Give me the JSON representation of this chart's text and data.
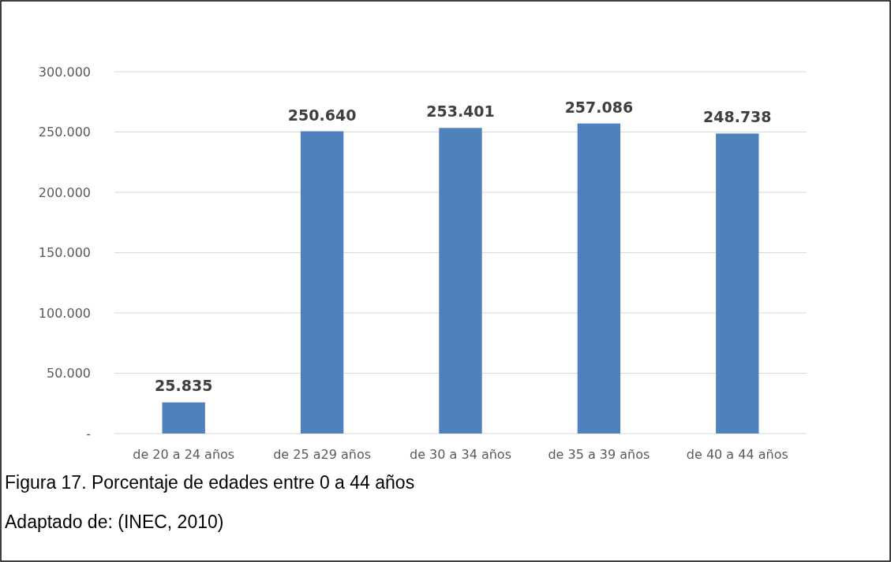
{
  "chart_data": {
    "type": "bar",
    "categories": [
      "de 20 a 24 años",
      "de 25 a29 años",
      "de 30 a 34 años",
      "de 35 a 39 años",
      "de 40 a 44 años"
    ],
    "values": [
      25835,
      250640,
      253401,
      257086,
      248738
    ],
    "value_labels": [
      "25.835",
      "250.640",
      "253.401",
      "257.086",
      "248.738"
    ],
    "color": "#4f81bd",
    "ylim": [
      0,
      300000
    ],
    "yticks": [
      {
        "value": 0,
        "label": "-"
      },
      {
        "value": 50000,
        "label": "50.000"
      },
      {
        "value": 100000,
        "label": "100.000"
      },
      {
        "value": 150000,
        "label": "150.000"
      },
      {
        "value": 200000,
        "label": "200.000"
      },
      {
        "value": 250000,
        "label": "250.000"
      },
      {
        "value": 300000,
        "label": "300.000"
      }
    ],
    "grid": "y",
    "annotations": [
      "Figura  17. Porcentaje de edades entre 0 a 44 años",
      "Adaptado de: (INEC, 2010)"
    ]
  }
}
